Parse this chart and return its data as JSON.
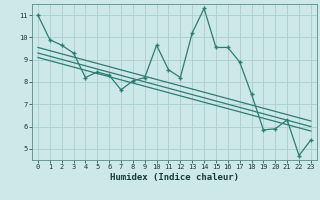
{
  "title": "",
  "xlabel": "Humidex (Indice chaleur)",
  "bg_color": "#cce8e8",
  "line_color": "#2e7d72",
  "grid_color": "#aacfcf",
  "xlim": [
    -0.5,
    23.5
  ],
  "ylim": [
    4.5,
    11.5
  ],
  "xticks": [
    0,
    1,
    2,
    3,
    4,
    5,
    6,
    7,
    8,
    9,
    10,
    11,
    12,
    13,
    14,
    15,
    16,
    17,
    18,
    19,
    20,
    21,
    22,
    23
  ],
  "yticks": [
    5,
    6,
    7,
    8,
    9,
    10,
    11
  ],
  "data_x": [
    0,
    1,
    2,
    3,
    4,
    5,
    6,
    7,
    8,
    9,
    10,
    11,
    12,
    13,
    14,
    15,
    16,
    17,
    18,
    19,
    20,
    21,
    22,
    23
  ],
  "data_y": [
    11.0,
    9.9,
    9.65,
    9.3,
    8.2,
    8.45,
    8.3,
    7.65,
    8.05,
    8.2,
    9.65,
    8.55,
    8.2,
    10.2,
    11.3,
    9.55,
    9.55,
    8.9,
    7.45,
    5.85,
    5.9,
    6.3,
    4.7,
    5.4
  ],
  "reg_lines": [
    {
      "x0": 0,
      "y0": 9.55,
      "x1": 23,
      "y1": 6.25
    },
    {
      "x0": 0,
      "y0": 9.3,
      "x1": 23,
      "y1": 6.0
    },
    {
      "x0": 0,
      "y0": 9.1,
      "x1": 23,
      "y1": 5.8
    }
  ]
}
